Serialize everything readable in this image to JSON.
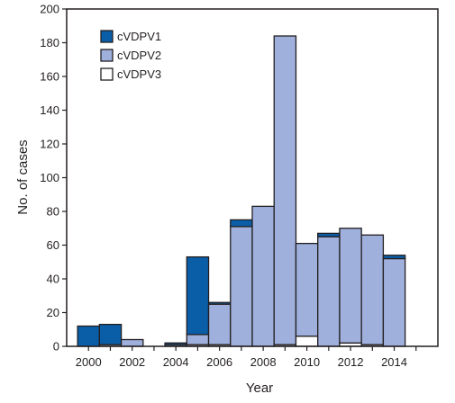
{
  "colors": {
    "cVDPV1": "#0a5ea8",
    "cVDPV2": "#9fb0dd",
    "cVDPV3": "#ffffff",
    "stroke": "#231f20"
  },
  "chart_data": {
    "type": "bar",
    "stacked": true,
    "title": "",
    "xlabel": "Year",
    "ylabel": "No. of cases",
    "ylim": [
      0,
      200
    ],
    "yticks": [
      0,
      20,
      40,
      60,
      80,
      100,
      120,
      140,
      160,
      180,
      200
    ],
    "xlim": [
      1999,
      2016
    ],
    "xticks": [
      2000,
      2002,
      2004,
      2006,
      2008,
      2010,
      2012,
      2014
    ],
    "grid": false,
    "legend": "top-left",
    "categories": [
      2000,
      2001,
      2002,
      2003,
      2004,
      2005,
      2006,
      2007,
      2008,
      2009,
      2010,
      2011,
      2012,
      2013,
      2014
    ],
    "series": [
      {
        "name": "cVDPV3",
        "values": [
          0,
          1,
          0,
          0,
          0,
          1,
          1,
          0,
          0,
          1,
          6,
          0,
          2,
          1,
          0
        ]
      },
      {
        "name": "cVDPV2",
        "values": [
          0,
          0,
          4,
          0,
          1,
          6,
          24,
          71,
          83,
          183,
          55,
          65,
          68,
          65,
          52
        ]
      },
      {
        "name": "cVDPV1",
        "values": [
          12,
          12,
          0,
          0,
          1,
          46,
          1,
          4,
          0,
          0,
          0,
          2,
          0,
          0,
          2
        ]
      }
    ],
    "legend_order": [
      "cVDPV1",
      "cVDPV2",
      "cVDPV3"
    ]
  }
}
